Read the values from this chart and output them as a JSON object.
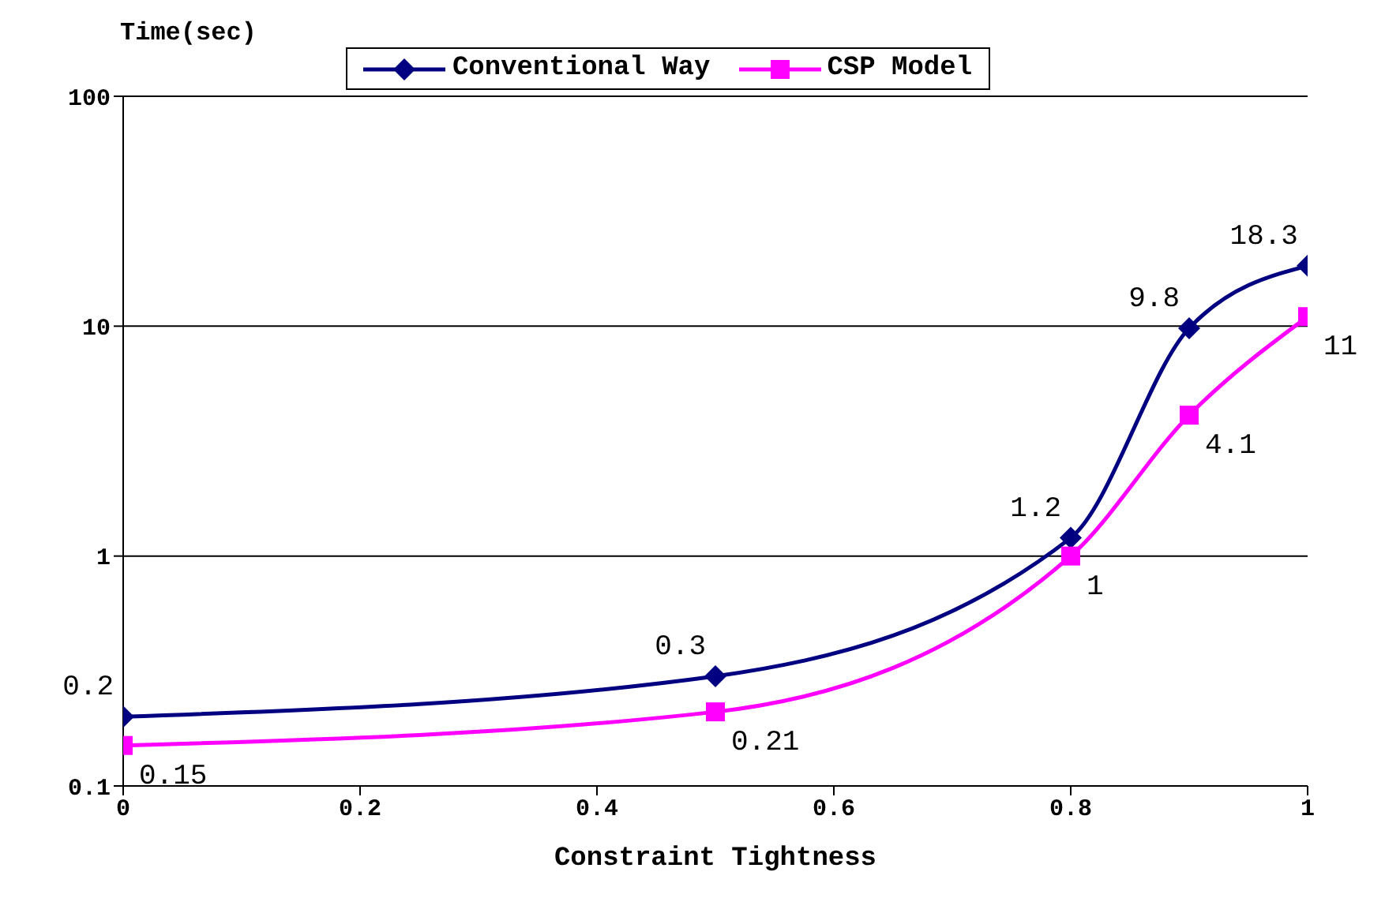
{
  "chart_data": {
    "type": "line",
    "xlabel": "Constraint Tightness",
    "ylabel": "Time(sec)",
    "x": [
      0,
      0.5,
      0.8,
      0.9,
      1
    ],
    "series": [
      {
        "name": "Conventional Way",
        "color": "#000080",
        "marker": "diamond",
        "values": [
          0.2,
          0.3,
          1.2,
          9.8,
          18.3
        ]
      },
      {
        "name": "CSP Model",
        "color": "#ff00ff",
        "marker": "square",
        "values": [
          0.15,
          0.21,
          1,
          4.1,
          11
        ]
      }
    ],
    "log": "y",
    "xlim": [
      0,
      1
    ],
    "xticks": [
      0,
      0.2,
      0.4,
      0.6,
      0.8,
      1
    ],
    "ylim": [
      0.1,
      100
    ],
    "yticks": [
      0.1,
      1,
      10,
      100
    ],
    "grid": "y",
    "legend": "top",
    "data_labels": true,
    "line_style": "solid"
  }
}
